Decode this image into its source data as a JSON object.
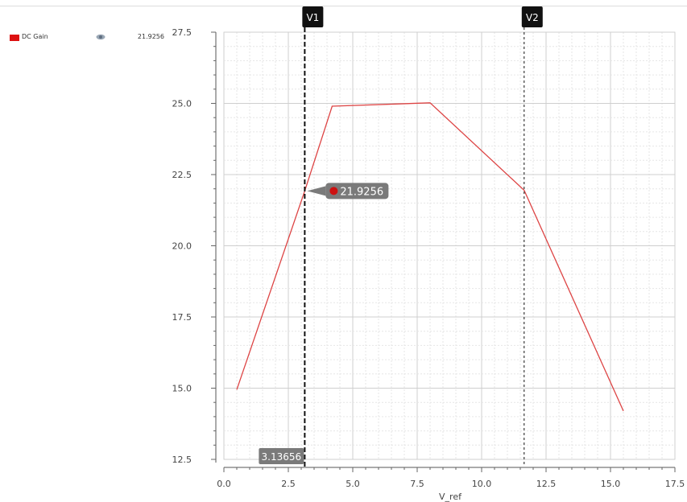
{
  "legend": {
    "items": [
      {
        "name": "DC Gain",
        "color": "#dd1111",
        "icon": "eye-icon",
        "value": "21.9256"
      }
    ]
  },
  "markers": [
    {
      "label": "V1",
      "x": 3.13656,
      "readout": "3.13656",
      "dashed": "bold"
    },
    {
      "label": "V2",
      "x": 11.65,
      "dashed": "thin"
    }
  ],
  "tooltip": {
    "value": "21.9256",
    "dot_color": "#cc1111"
  },
  "chart_data": {
    "type": "line",
    "title": "",
    "xlabel": "V_ref",
    "ylabel": "",
    "xlim": [
      0.0,
      17.5
    ],
    "ylim": [
      12.5,
      27.5
    ],
    "xticks": [
      "0.0",
      "2.5",
      "5.0",
      "7.5",
      "10.0",
      "12.5",
      "15.0",
      "17.5"
    ],
    "yticks": [
      "12.5",
      "15.0",
      "17.5",
      "20.0",
      "22.5",
      "25.0",
      "27.5"
    ],
    "grid": true,
    "legend_position": "top-left",
    "series": [
      {
        "name": "DC Gain",
        "color": "#dd4444",
        "x": [
          0.5,
          3.13656,
          4.2,
          8.0,
          11.65,
          15.5
        ],
        "y": [
          14.95,
          21.9256,
          24.9,
          25.02,
          21.95,
          14.2
        ]
      }
    ]
  }
}
